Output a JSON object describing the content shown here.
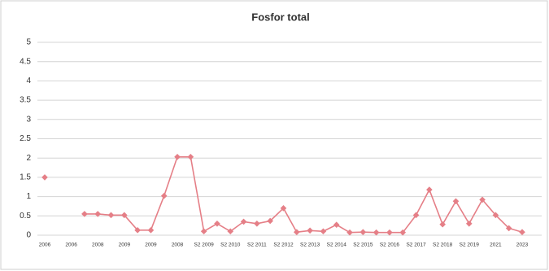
{
  "chart_data": {
    "type": "line",
    "title": "Fosfor total",
    "categories": [
      "2006",
      null,
      "2006",
      null,
      "2008",
      null,
      "2009",
      null,
      "2009",
      null,
      "2008",
      null,
      "S2 2009",
      null,
      "S2 2010",
      null,
      "S2 2011",
      null,
      "S2 2012",
      null,
      "S2 2013",
      null,
      "S2 2014",
      null,
      "S2 2015",
      null,
      "S2 2016",
      null,
      "S2 2017",
      null,
      "S2 2018",
      null,
      "S2 2019",
      null,
      "2021",
      null,
      "2023"
    ],
    "series": [
      {
        "name": "Fosfor total",
        "color": "#e57f87",
        "values": [
          1.5,
          null,
          null,
          0.55,
          0.55,
          0.52,
          0.52,
          0.13,
          0.13,
          1.02,
          2.03,
          2.03,
          0.1,
          0.3,
          0.1,
          0.35,
          0.3,
          0.37,
          0.7,
          0.08,
          0.12,
          0.1,
          0.27,
          0.07,
          0.08,
          0.07,
          0.07,
          0.07,
          0.52,
          1.18,
          0.28,
          0.88,
          0.3,
          0.92,
          0.52,
          0.18,
          0.08
        ]
      }
    ],
    "ylim": [
      0,
      5
    ],
    "yticks": [
      0,
      0.5,
      1,
      1.5,
      2,
      2.5,
      3,
      3.5,
      4,
      4.5,
      5
    ],
    "grid": true
  }
}
